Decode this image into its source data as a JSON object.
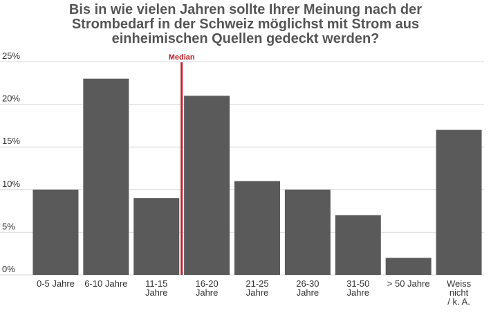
{
  "title_lines": [
    "Bis in wie vielen Jahren sollte Ihrer Meinung nach der",
    "Strombedarf in der Schweiz möglichst mit Strom aus",
    "einheimischen Quellen gedeckt werden?"
  ],
  "chart_data": {
    "type": "bar",
    "title": "Bis in wie vielen Jahren sollte Ihrer Meinung nach der Strombedarf in der Schweiz möglichst mit Strom aus einheimischen Quellen gedeckt werden?",
    "categories": [
      [
        "0-5 Jahre"
      ],
      [
        "6-10 Jahre"
      ],
      [
        "11-15",
        "Jahre"
      ],
      [
        "16-20",
        "Jahre"
      ],
      [
        "21-25",
        "Jahre"
      ],
      [
        "26-30",
        "Jahre"
      ],
      [
        "31-50",
        "Jahre"
      ],
      [
        "> 50 Jahre"
      ],
      [
        "Weiss",
        "nicht",
        "/ k. A."
      ]
    ],
    "values": [
      10,
      23,
      9,
      21,
      11,
      10,
      7,
      2,
      17
    ],
    "ylim": [
      0,
      25
    ],
    "yticks": [
      0,
      5,
      10,
      15,
      20,
      25
    ],
    "ytick_labels": [
      "0%",
      "5%",
      "10%",
      "15%",
      "20%",
      "25%"
    ],
    "grid": true,
    "median": {
      "label": "Median",
      "position_between": [
        "11-15 Jahre",
        "16-20 Jahre"
      ]
    },
    "colors": {
      "bar": "#5a5a5a",
      "median": "#c0202a",
      "grid": "#d9d9d9"
    }
  }
}
